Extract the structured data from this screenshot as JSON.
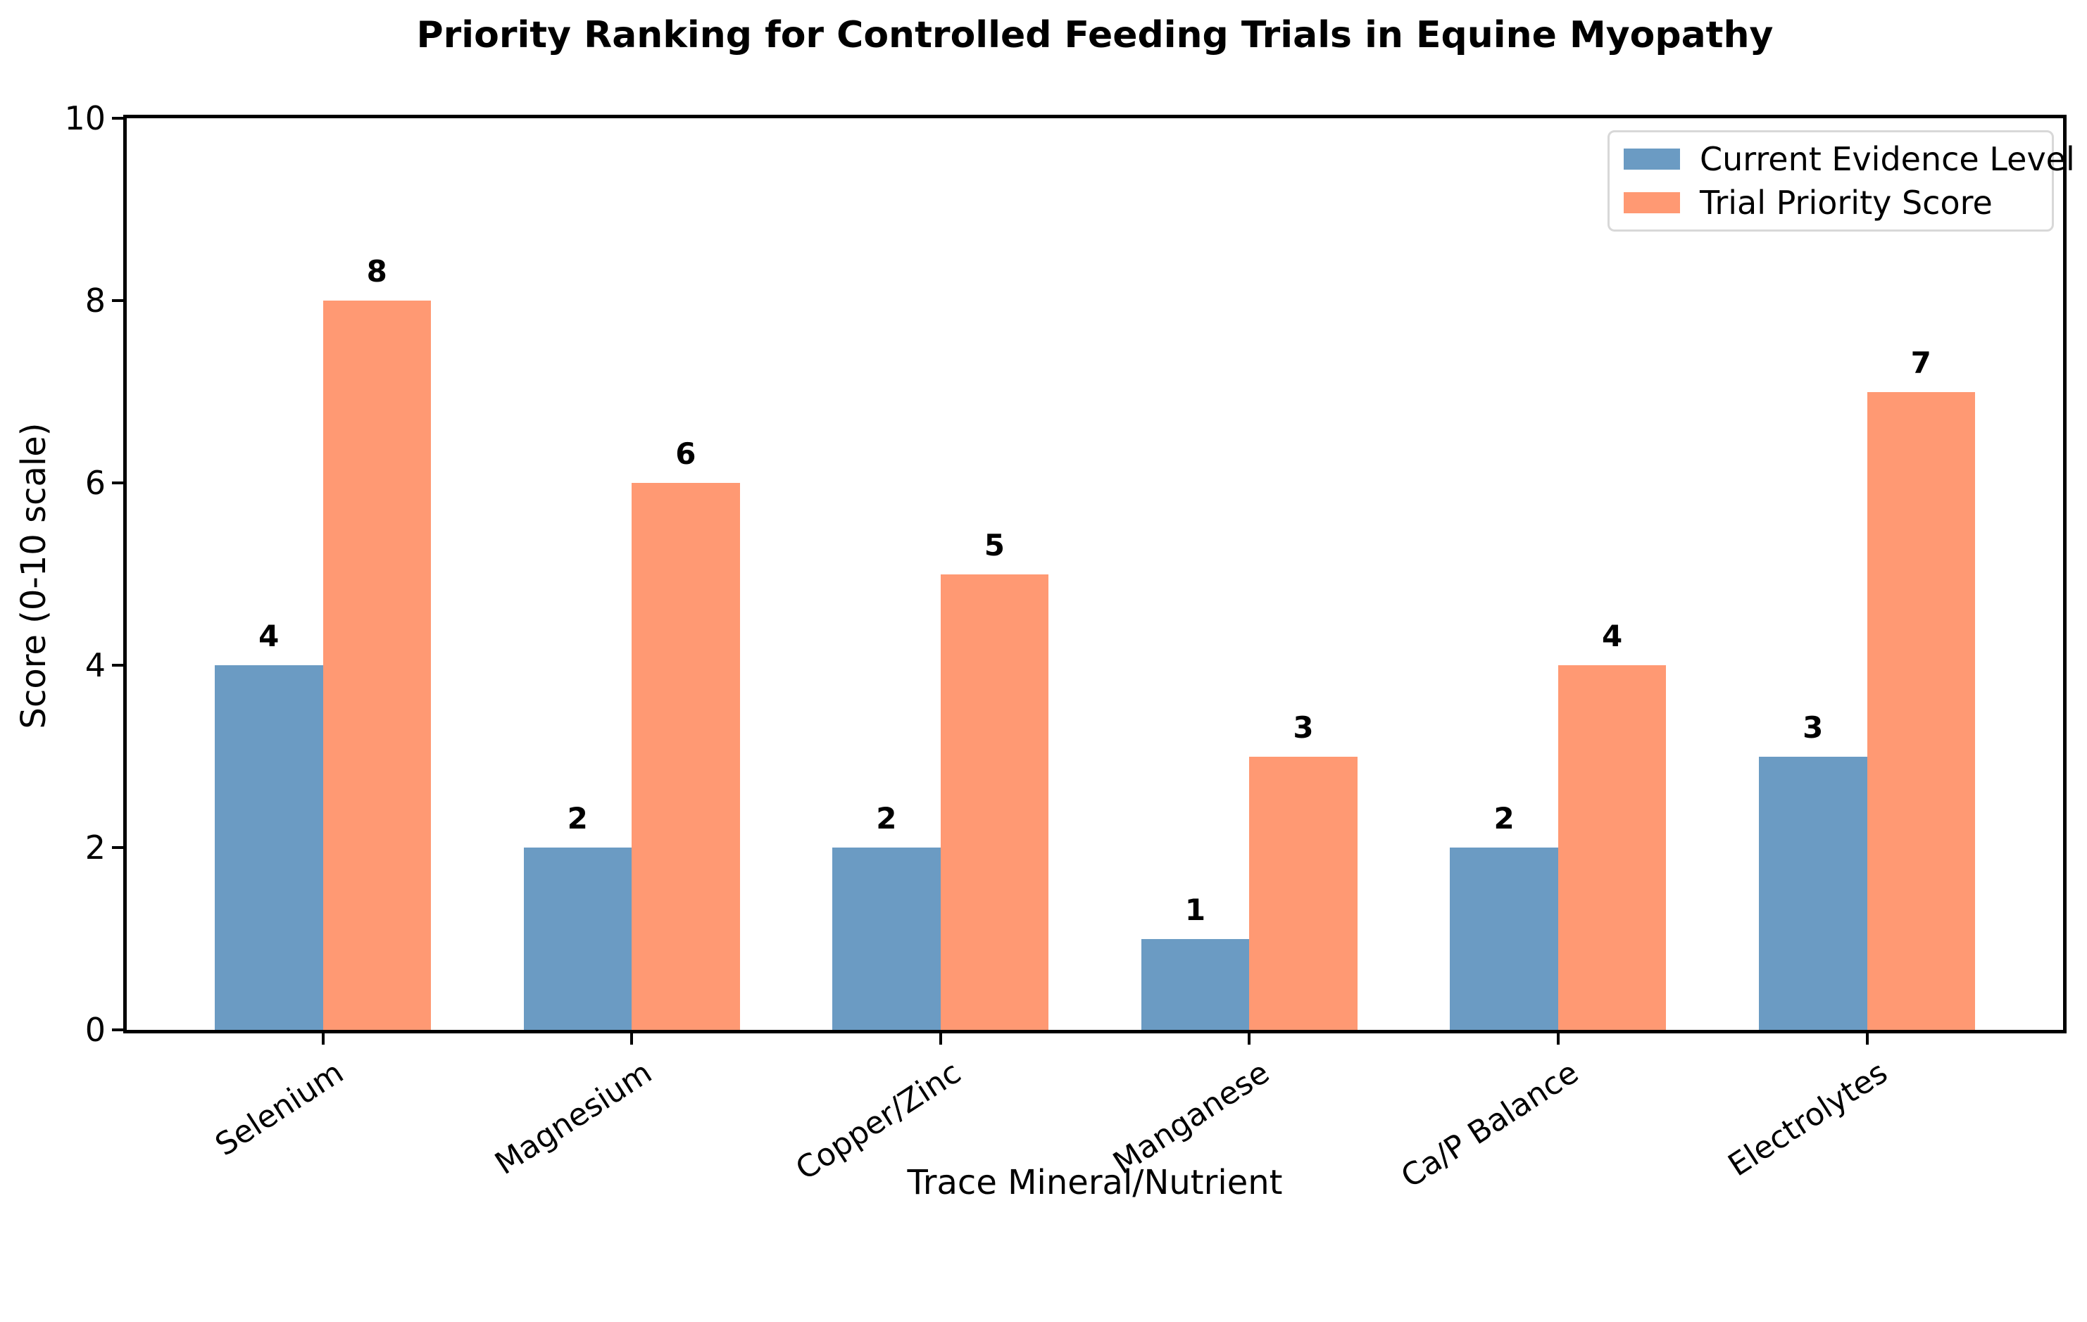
{
  "chart_data": {
    "type": "bar",
    "title": "Priority Ranking for Controlled Feeding Trials in Equine Myopathy",
    "xlabel": "Trace Mineral/Nutrient",
    "ylabel": "Score (0-10 scale)",
    "categories": [
      "Selenium",
      "Magnesium",
      "Copper/Zinc",
      "Manganese",
      "Ca/P Balance",
      "Electrolytes"
    ],
    "series": [
      {
        "name": "Current Evidence Level",
        "color": "#6B9BC3",
        "values": [
          4,
          2,
          2,
          1,
          2,
          3
        ]
      },
      {
        "name": "Trial Priority Score",
        "color": "#FF9973",
        "values": [
          8,
          6,
          5,
          3,
          4,
          7
        ]
      }
    ],
    "ylim": [
      0,
      10
    ],
    "yticks": [
      0,
      2,
      4,
      6,
      8,
      10
    ],
    "bar_width": 0.35,
    "value_labels": true,
    "legend_position": "upper right",
    "grid": false,
    "colors": {
      "axis": "#000000",
      "background": "#FFFFFF",
      "legend_border": "#D8D8D8"
    }
  }
}
